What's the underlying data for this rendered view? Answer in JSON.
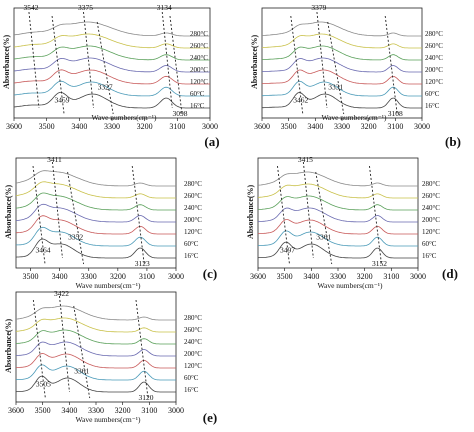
{
  "figure": {
    "common": {
      "temperatures": [
        "280°C",
        "260°C",
        "240°C",
        "200°C",
        "120°C",
        "60°C",
        "16°C"
      ],
      "colors": [
        "#8a8a8a",
        "#c9c14a",
        "#5aa05a",
        "#6a6ab0",
        "#c85a5a",
        "#4a9ab8",
        "#444444"
      ]
    }
  },
  "chart_data": [
    {
      "id": "a",
      "type": "line",
      "panel_label": "(a)",
      "ylabel": "Absorbance(%)",
      "xlabel": "Wave numbers(cm⁻¹)",
      "xlim": [
        3600,
        3000
      ],
      "x_ticks": [
        "3600",
        "3500",
        "3400",
        "3300",
        "3200",
        "3100",
        "3000"
      ],
      "peaks": [
        {
          "label": "3542",
          "x": 3542,
          "pos": "top"
        },
        {
          "label": "3375",
          "x": 3375,
          "pos": "top"
        },
        {
          "label": "3134",
          "x": 3134,
          "pos": "top"
        },
        {
          "label": "3459",
          "x": 3459,
          "pos": "bottom"
        },
        {
          "label": "3327",
          "x": 3327,
          "pos": "mid"
        },
        {
          "label": "3098",
          "x": 3098,
          "pos": "bottom"
        }
      ],
      "series": [
        "280°C",
        "260°C",
        "240°C",
        "200°C",
        "120°C",
        "60°C",
        "16°C"
      ]
    },
    {
      "id": "b",
      "type": "line",
      "panel_label": "(b)",
      "ylabel": "Absorbance(%)",
      "xlabel": "Wave numbers(cm⁻¹)",
      "xlim": [
        3600,
        3000
      ],
      "x_ticks": [
        "3600",
        "3500",
        "3400",
        "3300",
        "3200",
        "3100",
        "3000"
      ],
      "peaks": [
        {
          "label": "3379",
          "x": 3379,
          "pos": "top"
        },
        {
          "label": "3462",
          "x": 3462,
          "pos": "bottom"
        },
        {
          "label": "3331",
          "x": 3331,
          "pos": "mid"
        },
        {
          "label": "3108",
          "x": 3108,
          "pos": "bottom"
        }
      ],
      "series": [
        "280°C",
        "260°C",
        "240°C",
        "200°C",
        "120°C",
        "60°C",
        "16°C"
      ]
    },
    {
      "id": "c",
      "type": "line",
      "panel_label": "(c)",
      "ylabel": "Absorbance(%)",
      "xlabel": "Wave numbers(cm⁻¹)",
      "xlim": [
        3550,
        3000
      ],
      "x_ticks": [
        "3500",
        "3400",
        "3300",
        "3200",
        "3100",
        "3000"
      ],
      "peaks": [
        {
          "label": "3411",
          "x": 3411,
          "pos": "top"
        },
        {
          "label": "3464",
          "x": 3464,
          "pos": "bottom"
        },
        {
          "label": "3352",
          "x": 3352,
          "pos": "mid"
        },
        {
          "label": "3123",
          "x": 3123,
          "pos": "bottom"
        }
      ],
      "series": [
        "280°C",
        "260°C",
        "240°C",
        "200°C",
        "120°C",
        "60°C",
        "16°C"
      ]
    },
    {
      "id": "d",
      "type": "line",
      "panel_label": "(d)",
      "ylabel": "Absorbance(%)",
      "xlabel": "Wave numbers(cm⁻¹)",
      "xlim": [
        3600,
        3000
      ],
      "x_ticks": [
        "3600",
        "3500",
        "3400",
        "3300",
        "3200",
        "3100",
        "3000"
      ],
      "peaks": [
        {
          "label": "3415",
          "x": 3415,
          "pos": "top"
        },
        {
          "label": "3497",
          "x": 3497,
          "pos": "bottom"
        },
        {
          "label": "3361",
          "x": 3361,
          "pos": "mid"
        },
        {
          "label": "3152",
          "x": 3152,
          "pos": "bottom"
        }
      ],
      "series": [
        "280°C",
        "260°C",
        "240°C",
        "200°C",
        "120°C",
        "60°C",
        "16°C"
      ]
    },
    {
      "id": "e",
      "type": "line",
      "panel_label": "(e)",
      "ylabel": "Absorbance(%)",
      "xlabel": "Wave numbers(cm⁻¹)",
      "xlim": [
        3600,
        3000
      ],
      "x_ticks": [
        "3600",
        "3500",
        "3400",
        "3300",
        "3200",
        "3100",
        "3000"
      ],
      "peaks": [
        {
          "label": "3422",
          "x": 3422,
          "pos": "top"
        },
        {
          "label": "3505",
          "x": 3505,
          "pos": "bottom"
        },
        {
          "label": "3361",
          "x": 3361,
          "pos": "mid"
        },
        {
          "label": "3120",
          "x": 3120,
          "pos": "bottom"
        }
      ],
      "series": [
        "280°C",
        "260°C",
        "240°C",
        "200°C",
        "120°C",
        "60°C",
        "16°C"
      ]
    }
  ]
}
